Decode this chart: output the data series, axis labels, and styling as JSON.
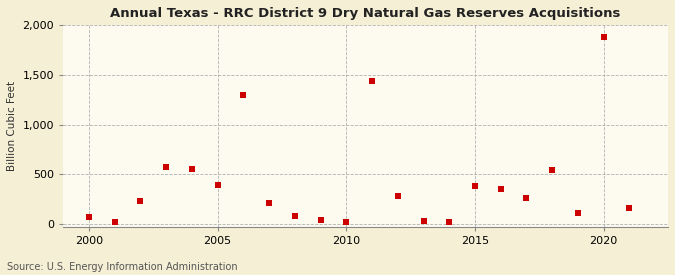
{
  "title": "Annual Texas - RRC District 9 Dry Natural Gas Reserves Acquisitions",
  "ylabel": "Billion Cubic Feet",
  "source": "Source: U.S. Energy Information Administration",
  "background_color": "#f5efd5",
  "plot_background_color": "#fdfaf0",
  "marker_color": "#cc0000",
  "marker": "s",
  "marker_size": 4,
  "xlim": [
    1999.0,
    2022.5
  ],
  "ylim": [
    -30,
    2000
  ],
  "yticks": [
    0,
    500,
    1000,
    1500,
    2000
  ],
  "ytick_labels": [
    "0",
    "500",
    "1,000",
    "1,500",
    "2,000"
  ],
  "xticks": [
    2000,
    2005,
    2010,
    2015,
    2020
  ],
  "years": [
    2000,
    2001,
    2002,
    2003,
    2004,
    2005,
    2006,
    2007,
    2008,
    2009,
    2010,
    2011,
    2012,
    2013,
    2014,
    2015,
    2016,
    2017,
    2018,
    2019,
    2020,
    2021
  ],
  "values": [
    70,
    18,
    230,
    570,
    555,
    390,
    1300,
    210,
    85,
    40,
    25,
    1440,
    285,
    30,
    18,
    380,
    355,
    265,
    545,
    108,
    1880,
    165
  ]
}
